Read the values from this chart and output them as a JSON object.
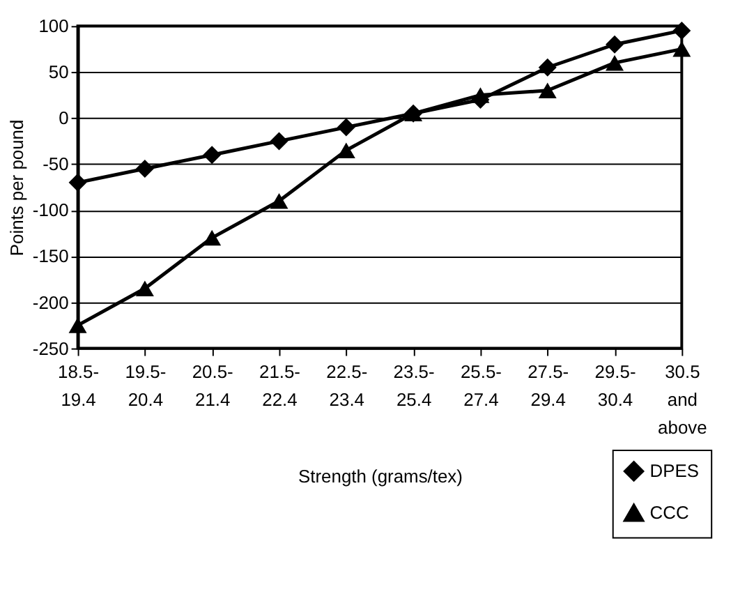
{
  "chart_data": {
    "type": "line",
    "xlabel": "Strength (grams/tex)",
    "ylabel": "Points per pound",
    "categories": [
      "18.5-\n19.4",
      "19.5-\n20.4",
      "20.5-\n21.4",
      "21.5-\n22.4",
      "22.5-\n23.4",
      "23.5-\n25.4",
      "25.5-\n27.4",
      "27.5-\n29.4",
      "29.5-\n30.4",
      "30.5\nand\nabove"
    ],
    "series": [
      {
        "name": "DPES",
        "color": "#000000",
        "marker": "diamond",
        "values": [
          -70,
          -55,
          -40,
          -25,
          -10,
          5,
          20,
          55,
          80,
          95
        ]
      },
      {
        "name": "CCC",
        "color": "#000000",
        "marker": "triangle",
        "values": [
          -225,
          -185,
          -130,
          -90,
          -35,
          5,
          25,
          30,
          60,
          75
        ]
      }
    ],
    "ylim": [
      -250,
      100
    ],
    "yticks": [
      -250,
      -200,
      -150,
      -100,
      -50,
      0,
      50,
      100
    ],
    "grid": "y",
    "legend": "bottom right",
    "line_style": "solid"
  }
}
